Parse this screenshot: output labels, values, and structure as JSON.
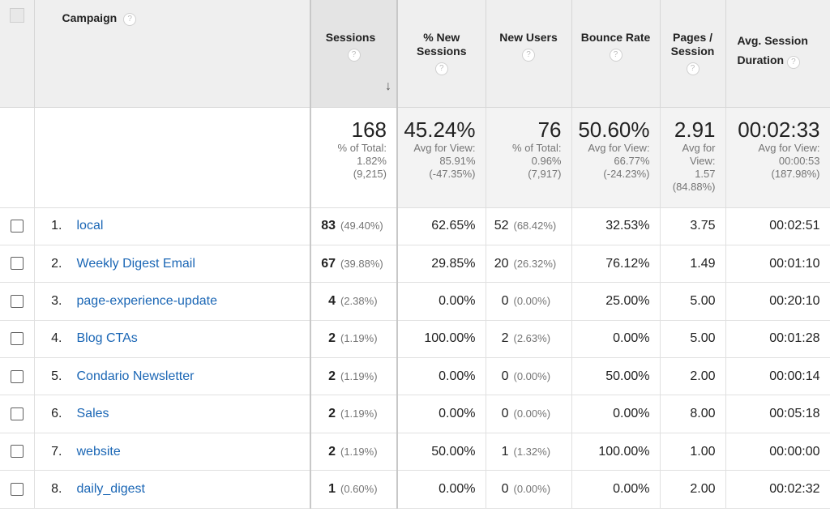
{
  "columns": {
    "campaign": "Campaign",
    "sessions": "Sessions",
    "new_sessions": "% New Sessions",
    "new_users": "New Users",
    "bounce_rate": "Bounce Rate",
    "pages_session": "Pages / Session",
    "avg_duration": "Avg. Session Duration",
    "help_glyph": "?",
    "sort_glyph": "↓"
  },
  "totals": {
    "sessions": {
      "value": "168",
      "l1": "% of Total:",
      "l2": "1.82%",
      "l3": "(9,215)"
    },
    "new_sessions": {
      "value": "45.24%",
      "l1": "Avg for View:",
      "l2": "85.91%",
      "l3": "(-47.35%)"
    },
    "new_users": {
      "value": "76",
      "l1": "% of Total:",
      "l2": "0.96%",
      "l3": "(7,917)"
    },
    "bounce_rate": {
      "value": "50.60%",
      "l1": "Avg for View:",
      "l2": "66.77%",
      "l3": "(-24.23%)"
    },
    "pages_session": {
      "value": "2.91",
      "l1": "Avg for",
      "l2": "View:",
      "l3": "1.57",
      "l4": "(84.88%)"
    },
    "avg_duration": {
      "value": "00:02:33",
      "l1": "Avg for View:",
      "l2": "00:00:53",
      "l3": "(187.98%)"
    }
  },
  "rows": [
    {
      "idx": "1.",
      "name": "local",
      "sessions": "83",
      "sessions_pct": "(49.40%)",
      "new_sessions": "62.65%",
      "new_users": "52",
      "new_users_pct": "(68.42%)",
      "bounce": "32.53%",
      "pages": "3.75",
      "duration": "00:02:51"
    },
    {
      "idx": "2.",
      "name": "Weekly Digest Email",
      "sessions": "67",
      "sessions_pct": "(39.88%)",
      "new_sessions": "29.85%",
      "new_users": "20",
      "new_users_pct": "(26.32%)",
      "bounce": "76.12%",
      "pages": "1.49",
      "duration": "00:01:10"
    },
    {
      "idx": "3.",
      "name": "page-experience-update",
      "sessions": "4",
      "sessions_pct": "(2.38%)",
      "new_sessions": "0.00%",
      "new_users": "0",
      "new_users_pct": "(0.00%)",
      "bounce": "25.00%",
      "pages": "5.00",
      "duration": "00:20:10"
    },
    {
      "idx": "4.",
      "name": "Blog CTAs",
      "sessions": "2",
      "sessions_pct": "(1.19%)",
      "new_sessions": "100.00%",
      "new_users": "2",
      "new_users_pct": "(2.63%)",
      "bounce": "0.00%",
      "pages": "5.00",
      "duration": "00:01:28"
    },
    {
      "idx": "5.",
      "name": "Condario Newsletter",
      "sessions": "2",
      "sessions_pct": "(1.19%)",
      "new_sessions": "0.00%",
      "new_users": "0",
      "new_users_pct": "(0.00%)",
      "bounce": "50.00%",
      "pages": "2.00",
      "duration": "00:00:14"
    },
    {
      "idx": "6.",
      "name": "Sales",
      "sessions": "2",
      "sessions_pct": "(1.19%)",
      "new_sessions": "0.00%",
      "new_users": "0",
      "new_users_pct": "(0.00%)",
      "bounce": "0.00%",
      "pages": "8.00",
      "duration": "00:05:18"
    },
    {
      "idx": "7.",
      "name": "website",
      "sessions": "2",
      "sessions_pct": "(1.19%)",
      "new_sessions": "50.00%",
      "new_users": "1",
      "new_users_pct": "(1.32%)",
      "bounce": "100.00%",
      "pages": "1.00",
      "duration": "00:00:00"
    },
    {
      "idx": "8.",
      "name": "daily_digest",
      "sessions": "1",
      "sessions_pct": "(0.60%)",
      "new_sessions": "0.00%",
      "new_users": "0",
      "new_users_pct": "(0.00%)",
      "bounce": "0.00%",
      "pages": "2.00",
      "duration": "00:02:32"
    }
  ]
}
